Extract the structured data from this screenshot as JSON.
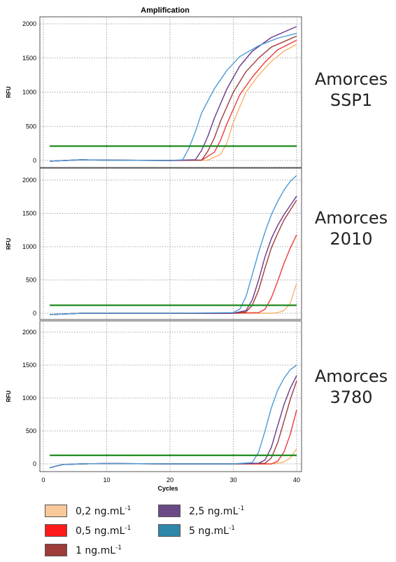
{
  "chart_data": {
    "type": "line",
    "title": "Amplification",
    "xlabel": "Cycles",
    "ylabel": "RFU",
    "xlim": [
      0,
      40
    ],
    "ylim": [
      -50,
      2100
    ],
    "x_ticks": [
      "0",
      "10",
      "20",
      "30",
      "40"
    ],
    "y_ticks": [
      "0",
      "500",
      "1000",
      "1500",
      "2000"
    ],
    "grid": true,
    "legend_position": "bottom",
    "panels": [
      {
        "label": [
          "Amorces",
          "SSP1"
        ],
        "threshold": 210,
        "series": [
          {
            "name": "0,2 ng.mL",
            "color": "#f6b26b",
            "values": [
              [
                1,
                -10
              ],
              [
                6,
                10
              ],
              [
                10,
                5
              ],
              [
                20,
                0
              ],
              [
                26,
                5
              ],
              [
                28,
                90
              ],
              [
                29,
                260
              ],
              [
                30,
                560
              ],
              [
                32,
                1000
              ],
              [
                34,
                1250
              ],
              [
                36,
                1450
              ],
              [
                38,
                1600
              ],
              [
                40,
                1700
              ]
            ]
          },
          {
            "name": "0,5 ng.mL",
            "color": "#ee3b3b",
            "values": [
              [
                1,
                -10
              ],
              [
                6,
                10
              ],
              [
                10,
                5
              ],
              [
                20,
                0
              ],
              [
                25,
                5
              ],
              [
                27,
                120
              ],
              [
                28,
                300
              ],
              [
                29,
                540
              ],
              [
                31,
                960
              ],
              [
                33,
                1220
              ],
              [
                35,
                1440
              ],
              [
                37,
                1620
              ],
              [
                40,
                1760
              ]
            ]
          },
          {
            "name": "1 ng.mL",
            "color": "#9e3b3b",
            "values": [
              [
                1,
                -10
              ],
              [
                6,
                10
              ],
              [
                10,
                5
              ],
              [
                20,
                0
              ],
              [
                25,
                5
              ],
              [
                26,
                140
              ],
              [
                27,
                330
              ],
              [
                28,
                580
              ],
              [
                30,
                1000
              ],
              [
                32,
                1300
              ],
              [
                34,
                1500
              ],
              [
                36,
                1660
              ],
              [
                40,
                1820
              ]
            ]
          },
          {
            "name": "2,5 ng.mL",
            "color": "#6a3a88",
            "values": [
              [
                1,
                -10
              ],
              [
                6,
                10
              ],
              [
                10,
                5
              ],
              [
                20,
                0
              ],
              [
                24,
                10
              ],
              [
                25,
                150
              ],
              [
                26,
                360
              ],
              [
                27,
                620
              ],
              [
                29,
                1050
              ],
              [
                31,
                1380
              ],
              [
                33,
                1600
              ],
              [
                36,
                1800
              ],
              [
                40,
                1960
              ]
            ]
          },
          {
            "name": "5 ng.mL",
            "color": "#4b9bd6",
            "values": [
              [
                1,
                -10
              ],
              [
                6,
                10
              ],
              [
                10,
                5
              ],
              [
                20,
                0
              ],
              [
                22,
                10
              ],
              [
                23,
                180
              ],
              [
                24,
                420
              ],
              [
                25,
                700
              ],
              [
                27,
                1050
              ],
              [
                29,
                1320
              ],
              [
                31,
                1520
              ],
              [
                34,
                1680
              ],
              [
                37,
                1790
              ],
              [
                40,
                1860
              ]
            ]
          }
        ]
      },
      {
        "label": [
          "Amorces",
          "2010"
        ],
        "threshold": 120,
        "series": [
          {
            "name": "0,2 ng.mL",
            "color": "#f6b26b",
            "values": [
              [
                1,
                -20
              ],
              [
                6,
                0
              ],
              [
                10,
                0
              ],
              [
                20,
                0
              ],
              [
                30,
                0
              ],
              [
                36,
                0
              ],
              [
                37,
                10
              ],
              [
                38,
                40
              ],
              [
                39,
                150
              ],
              [
                40,
                450
              ]
            ]
          },
          {
            "name": "0,5 ng.mL",
            "color": "#ee3b3b",
            "values": [
              [
                1,
                -20
              ],
              [
                6,
                0
              ],
              [
                10,
                0
              ],
              [
                20,
                0
              ],
              [
                30,
                0
              ],
              [
                34,
                10
              ],
              [
                35,
                60
              ],
              [
                36,
                230
              ],
              [
                37,
                480
              ],
              [
                38,
                750
              ],
              [
                39,
                980
              ],
              [
                40,
                1180
              ]
            ]
          },
          {
            "name": "1 ng.mL",
            "color": "#9e3b3b",
            "values": [
              [
                1,
                -20
              ],
              [
                6,
                0
              ],
              [
                10,
                0
              ],
              [
                20,
                0
              ],
              [
                30,
                0
              ],
              [
                32,
                20
              ],
              [
                33,
                120
              ],
              [
                34,
                350
              ],
              [
                35,
                680
              ],
              [
                36,
                980
              ],
              [
                37,
                1200
              ],
              [
                38,
                1400
              ],
              [
                39,
                1550
              ],
              [
                40,
                1700
              ]
            ]
          },
          {
            "name": "2,5 ng.mL",
            "color": "#6a3a88",
            "values": [
              [
                1,
                -20
              ],
              [
                6,
                0
              ],
              [
                10,
                0
              ],
              [
                20,
                0
              ],
              [
                30,
                0
              ],
              [
                32,
                40
              ],
              [
                33,
                200
              ],
              [
                34,
                500
              ],
              [
                35,
                850
              ],
              [
                36,
                1120
              ],
              [
                37,
                1320
              ],
              [
                38,
                1480
              ],
              [
                39,
                1620
              ],
              [
                40,
                1760
              ]
            ]
          },
          {
            "name": "5 ng.mL",
            "color": "#4b9bd6",
            "values": [
              [
                1,
                -20
              ],
              [
                6,
                0
              ],
              [
                10,
                0
              ],
              [
                20,
                0
              ],
              [
                30,
                10
              ],
              [
                31,
                60
              ],
              [
                32,
                250
              ],
              [
                33,
                580
              ],
              [
                34,
                920
              ],
              [
                35,
                1220
              ],
              [
                36,
                1480
              ],
              [
                37,
                1680
              ],
              [
                38,
                1850
              ],
              [
                39,
                1980
              ],
              [
                40,
                2070
              ]
            ]
          }
        ]
      },
      {
        "label": [
          "Amorces",
          "3780"
        ],
        "threshold": 130,
        "series": [
          {
            "name": "0,2 ng.mL",
            "color": "#f6b26b",
            "values": [
              [
                1,
                -60
              ],
              [
                3,
                -10
              ],
              [
                6,
                0
              ],
              [
                10,
                5
              ],
              [
                20,
                0
              ],
              [
                30,
                0
              ],
              [
                36,
                0
              ],
              [
                37,
                10
              ],
              [
                38,
                30
              ],
              [
                39,
                90
              ],
              [
                40,
                230
              ]
            ]
          },
          {
            "name": "0,5 ng.mL",
            "color": "#ee3b3b",
            "values": [
              [
                1,
                -60
              ],
              [
                3,
                -10
              ],
              [
                6,
                0
              ],
              [
                10,
                5
              ],
              [
                20,
                0
              ],
              [
                30,
                0
              ],
              [
                36,
                0
              ],
              [
                37,
                40
              ],
              [
                38,
                180
              ],
              [
                39,
                450
              ],
              [
                40,
                820
              ]
            ]
          },
          {
            "name": "1 ng.mL",
            "color": "#9e3b3b",
            "values": [
              [
                1,
                -60
              ],
              [
                3,
                -10
              ],
              [
                6,
                0
              ],
              [
                10,
                5
              ],
              [
                20,
                0
              ],
              [
                30,
                0
              ],
              [
                35,
                10
              ],
              [
                36,
                90
              ],
              [
                37,
                320
              ],
              [
                38,
                650
              ],
              [
                39,
                980
              ],
              [
                40,
                1260
              ]
            ]
          },
          {
            "name": "2,5 ng.mL",
            "color": "#6a3a88",
            "values": [
              [
                1,
                -60
              ],
              [
                3,
                -10
              ],
              [
                6,
                0
              ],
              [
                10,
                5
              ],
              [
                20,
                0
              ],
              [
                30,
                0
              ],
              [
                34,
                10
              ],
              [
                35,
                60
              ],
              [
                36,
                250
              ],
              [
                37,
                580
              ],
              [
                38,
                900
              ],
              [
                39,
                1150
              ],
              [
                40,
                1340
              ]
            ]
          },
          {
            "name": "5 ng.mL",
            "color": "#4b9bd6",
            "values": [
              [
                1,
                -60
              ],
              [
                3,
                -10
              ],
              [
                6,
                0
              ],
              [
                10,
                5
              ],
              [
                20,
                0
              ],
              [
                30,
                0
              ],
              [
                33,
                20
              ],
              [
                34,
                180
              ],
              [
                35,
                500
              ],
              [
                36,
                850
              ],
              [
                37,
                1120
              ],
              [
                38,
                1300
              ],
              [
                39,
                1430
              ],
              [
                40,
                1500
              ]
            ]
          }
        ]
      }
    ],
    "threshold_color": "#1e8a1e"
  },
  "legend": {
    "unit_suffix": "-1",
    "items": [
      {
        "label": "0,2 ng.mL",
        "color": "#f9c89b"
      },
      {
        "label": "0,5 ng.mL",
        "color": "#ff1a1a"
      },
      {
        "label": "1 ng.mL",
        "color": "#9e3b3b"
      },
      {
        "label": "2,5 ng.mL",
        "color": "#6a4a86"
      },
      {
        "label": "5 ng.mL",
        "color": "#2f87a8"
      }
    ]
  }
}
